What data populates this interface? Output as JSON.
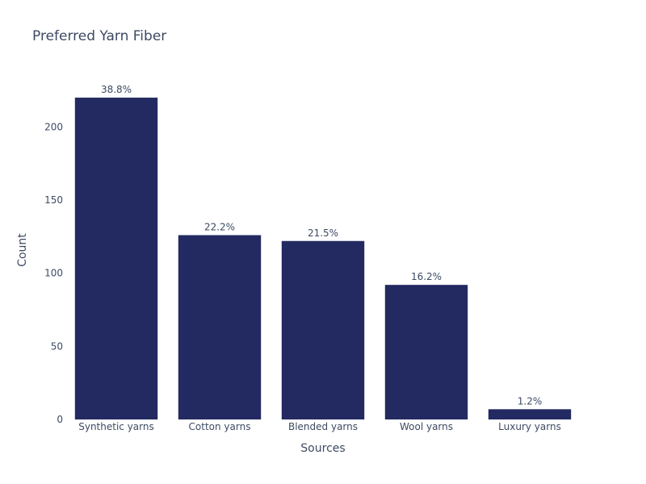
{
  "colors": {
    "bar": "#232a61",
    "text": "#3d4a63",
    "background": "#ffffff"
  },
  "chart_data": {
    "type": "bar",
    "title": "Preferred Yarn Fiber",
    "xlabel": "Sources",
    "ylabel": "Count",
    "categories": [
      "Synthetic yarns",
      "Cotton yarns",
      "Blended yarns",
      "Wool yarns",
      "Luxury yarns"
    ],
    "values": [
      220,
      126,
      122,
      92,
      7
    ],
    "data_labels": [
      "38.8%",
      "22.2%",
      "21.5%",
      "16.2%",
      "1.2%"
    ],
    "ylim": [
      0,
      231.6
    ],
    "yticks": [
      0,
      50,
      100,
      150,
      200
    ],
    "grid": false,
    "legend": "none"
  }
}
